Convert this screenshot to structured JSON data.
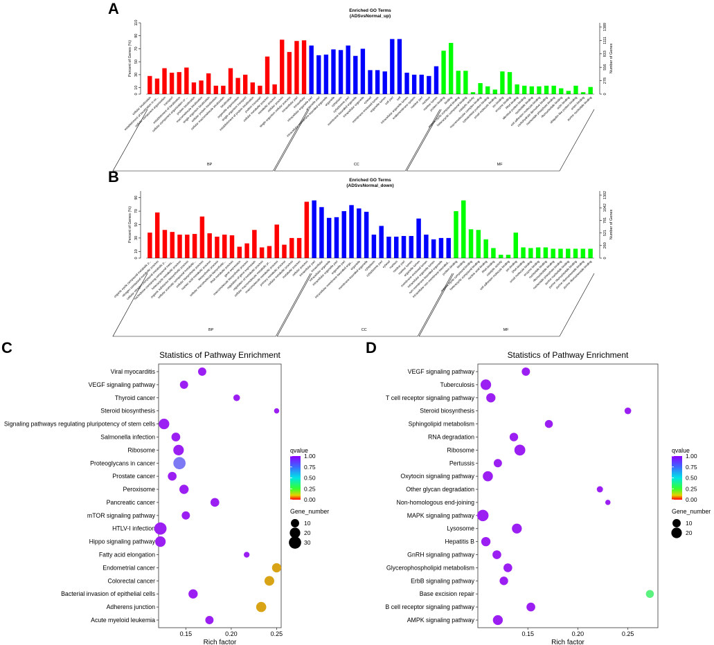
{
  "panels": {
    "a": "A",
    "b": "B",
    "c": "C",
    "d": "D"
  },
  "chart_data": [
    {
      "id": "A",
      "type": "bar",
      "title": "Enriched GO Terms",
      "subtitle": "(ADSvsNormal_up)",
      "ylabel_left": "Percent of Genes (%)",
      "ylabel_right": "Number of Genes",
      "left_ticks": [
        "0",
        "10",
        "30",
        "50",
        "70",
        "90",
        "110"
      ],
      "right_ticks": [
        "0",
        "278",
        "556",
        "833",
        "1111",
        "1389"
      ],
      "ylim": [
        0,
        110
      ],
      "groups": [
        {
          "name": "BP",
          "color": "#ff0000",
          "start": 0,
          "end": 21
        },
        {
          "name": "CC",
          "color": "#0000ff",
          "start": 22,
          "end": 39
        },
        {
          "name": "MF",
          "color": "#00ff00",
          "start": 40,
          "end": 63
        }
      ],
      "categories": [
        "cellular localization",
        "establishment of localization in ce...",
        "cellular component organization",
        "transport",
        "establishment of localization",
        "cellular component organization or ...",
        "protein localization",
        "macromolecule localization",
        "single-organism localization",
        "cellular protein localization",
        "cellular macromolecule localization",
        "localization",
        "organelle organization",
        "single-organism transport",
        "establishment of protein localization",
        "protein transport",
        "cellular metabolic process",
        "metabolic process",
        "cellular process",
        "single-organism cellular process",
        "intracellular part",
        "intracellular",
        "intracellular organelle part",
        "organelle part",
        "intracellular membrane-bounded organelle",
        "organelle",
        "cytoplasm",
        "cytoplasmic part",
        "membrane-bounded organelle",
        "intracellular organelle",
        "cytosol",
        "membrane-enclosed lumen",
        "organelle lumen",
        "cell part",
        "cell",
        "intracellular organelle lumen",
        "endomembrane system",
        "nuclear part",
        "nucleus",
        "nuclear lumen",
        "protein binding",
        "binding",
        "organic cyclic compound binding",
        "heterocyclic compound binding",
        "catalytic activity",
        "macromolecular complex binding",
        "cytoskeletal protein binding",
        "small molecule binding",
        "ion binding",
        "enzyme binding",
        "RNA binding",
        "identical protein binding",
        "nucleotide binding",
        "cell adhesion molecule binding",
        "carbohydrate derivative binding",
        "nucleoside phosphate binding",
        "ribonucleotide binding",
        "actin binding",
        "ubiquitin-like protein binding",
        "anion binding",
        "purine nucleotide binding",
        "ribonucleoside binding",
        "transferase activity",
        "hydrolase activity"
      ],
      "values": [
        28,
        24,
        40,
        33,
        34,
        41,
        18,
        21,
        32,
        13,
        13,
        40,
        25,
        30,
        18,
        13,
        58,
        15,
        84,
        65,
        82,
        83,
        75,
        60,
        61,
        69,
        68,
        75,
        59,
        70,
        37,
        37,
        35,
        85,
        85,
        33,
        30,
        30,
        28,
        43,
        67,
        79,
        36,
        36,
        3,
        17,
        12,
        7,
        35,
        34,
        15,
        13,
        12,
        12,
        13,
        13,
        9,
        5,
        13,
        3,
        11,
        0,
        0,
        0
      ],
      "shown": 61
    },
    {
      "id": "B",
      "type": "bar",
      "title": "Enriched GO Terms",
      "subtitle": "(ADSvsNormal_down)",
      "ylabel_left": "Percent of Genes (%)",
      "ylabel_right": "Number of Genes",
      "left_ticks": [
        "0",
        "10",
        "30",
        "50",
        "70",
        "90"
      ],
      "right_ticks": [
        "0",
        "260",
        "521",
        "781",
        "1042",
        "1302"
      ],
      "ylim": [
        0,
        100
      ],
      "groups": [
        {
          "name": "BP",
          "color": "#ff0000",
          "start": 0,
          "end": 21
        },
        {
          "name": "CC",
          "color": "#0000ff",
          "start": 22,
          "end": 40
        },
        {
          "name": "MF",
          "color": "#00ff00",
          "start": 41,
          "end": 59
        }
      ],
      "categories": [
        "organic cyclic compound metabolic p...",
        "nitrogen compound metabolic process",
        "cellular nitrogen compound metabolic p...",
        "nucleobase-containing compound meta...",
        "heterocycle metabolic process",
        "organic substance biosynthetic process",
        "cellular aromatic compound metabolic...",
        "cellular biosynthetic process",
        "nucleic acid metabolic process",
        "biosynthetic process",
        "cellular macromolecule biosynthetic...",
        "RNA metabolic process",
        "gene expression",
        "macromolecule biosynthetic process",
        "regulation of gene expression",
        "regulation of metabolic process",
        "cellular macromolecule metabolic pr...",
        "macromolecule metabolic process",
        "primary metabolic process",
        "cellular metabolic process",
        "metabolic process",
        "cellular process",
        "intracellular part",
        "intracellular",
        "intracellular organelle",
        "intracellular organelle part",
        "organelle part",
        "intracellular membrane-bounded orga...",
        "organelle",
        "membrane-bounded organelle",
        "cytoplasm",
        "cytoplasmic part",
        "cytosol",
        "nucleus",
        "nuclear part",
        "nuclear lumen",
        "organelle lumen",
        "membrane-enclosed lumen",
        "intracellular organelle lumen",
        "non-membrane-bounded organelle",
        "intracellular non-membrane-bounded...",
        "protein binding",
        "binding",
        "organic cyclic compound binding",
        "heterocyclic compound binding",
        "nucleic acid binding",
        "RNA binding",
        "catalytic activity",
        "cell adhesion molecule binding",
        "ion binding",
        "DNA binding",
        "small molecule binding",
        "enzyme binding",
        "nucleotide binding",
        "ribonucleotide binding",
        "nucleoside phosphate binding",
        "purine nucleotide binding",
        "purine ribonucleotide binding",
        "purine ribonucleoside binding",
        "purine ribonucleoside binding"
      ],
      "values": [
        38,
        68,
        42,
        39,
        35,
        35,
        36,
        62,
        37,
        32,
        35,
        34,
        17,
        22,
        42,
        16,
        18,
        50,
        20,
        30,
        30,
        84,
        86,
        76,
        60,
        61,
        70,
        79,
        74,
        69,
        35,
        48,
        32,
        32,
        33,
        33,
        59,
        35,
        28,
        30,
        30,
        70,
        86,
        43,
        42,
        28,
        15,
        5,
        5,
        38,
        16,
        15,
        16,
        16,
        14,
        14,
        14,
        14,
        14,
        14
      ],
      "shown": 60
    },
    {
      "id": "C",
      "type": "scatter",
      "title": "Statistics of Pathway Enrichment",
      "xlabel": "Rich factor",
      "xlim": [
        0.12,
        0.255
      ],
      "xticks": [
        "0.15",
        "0.20",
        "0.25"
      ],
      "legend_color_title": "qvalue",
      "legend_color_ticks": [
        "1.00",
        "0.75",
        "0.50",
        "0.25",
        "0.00"
      ],
      "legend_size_title": "Gene_number",
      "legend_size_labels": [
        "10",
        "20",
        "30"
      ],
      "points": [
        {
          "label": "Viral myocarditis",
          "x": 0.168,
          "genes": 10,
          "q": 1.0
        },
        {
          "label": "VEGF signaling pathway",
          "x": 0.148,
          "genes": 10,
          "q": 1.0
        },
        {
          "label": "Thyroid cancer",
          "x": 0.206,
          "genes": 5,
          "q": 1.0
        },
        {
          "label": "Steroid biosynthesis",
          "x": 0.25,
          "genes": 2,
          "q": 1.0
        },
        {
          "label": "Signaling pathways regulating pluripotency of stem cells",
          "x": 0.126,
          "genes": 20,
          "q": 1.0
        },
        {
          "label": "Salmonella infection",
          "x": 0.139,
          "genes": 12,
          "q": 1.0
        },
        {
          "label": "Ribosome",
          "x": 0.142,
          "genes": 20,
          "q": 1.0
        },
        {
          "label": "Proteoglycans in cancer",
          "x": 0.143,
          "genes": 30,
          "q": 0.82
        },
        {
          "label": "Prostate cancer",
          "x": 0.135,
          "genes": 12,
          "q": 1.0
        },
        {
          "label": "Peroxisome",
          "x": 0.148,
          "genes": 14,
          "q": 1.0
        },
        {
          "label": "Pancreatic cancer",
          "x": 0.182,
          "genes": 12,
          "q": 1.0
        },
        {
          "label": "mTOR signaling pathway",
          "x": 0.15,
          "genes": 10,
          "q": 1.0
        },
        {
          "label": "HTLV-I infection",
          "x": 0.122,
          "genes": 30,
          "q": 1.0
        },
        {
          "label": "Hippo signaling pathway",
          "x": 0.122,
          "genes": 20,
          "q": 1.0
        },
        {
          "label": "Fatty acid elongation",
          "x": 0.217,
          "genes": 3,
          "q": 1.0
        },
        {
          "label": "Endometrial cancer",
          "x": 0.25,
          "genes": 14,
          "q": 0.1
        },
        {
          "label": "Colorectal cancer",
          "x": 0.242,
          "genes": 16,
          "q": 0.1
        },
        {
          "label": "Bacterial invasion of epithelial cells",
          "x": 0.158,
          "genes": 14,
          "q": 1.0
        },
        {
          "label": "Adherens junction",
          "x": 0.233,
          "genes": 18,
          "q": 0.1
        },
        {
          "label": "Acute myeloid leukemia",
          "x": 0.176,
          "genes": 10,
          "q": 1.0
        }
      ]
    },
    {
      "id": "D",
      "type": "scatter",
      "title": "Statistics of Pathway Enrichment",
      "xlabel": "Rich factor",
      "xlim": [
        0.1,
        0.28
      ],
      "xticks": [
        "0.15",
        "0.20",
        "0.25"
      ],
      "legend_color_title": "qvalue",
      "legend_color_ticks": [
        "1.00",
        "0.75",
        "0.50",
        "0.25",
        "0.00"
      ],
      "legend_size_title": "Gene_number",
      "legend_size_labels": [
        "10",
        "20"
      ],
      "points": [
        {
          "label": "VEGF signaling pathway",
          "x": 0.148,
          "genes": 10,
          "q": 1.0
        },
        {
          "label": "Tuberculosis",
          "x": 0.108,
          "genes": 20,
          "q": 1.0
        },
        {
          "label": "T cell receptor signaling pathway",
          "x": 0.113,
          "genes": 14,
          "q": 1.0
        },
        {
          "label": "Steroid biosynthesis",
          "x": 0.25,
          "genes": 5,
          "q": 1.0
        },
        {
          "label": "Sphingolipid metabolism",
          "x": 0.171,
          "genes": 9,
          "q": 1.0
        },
        {
          "label": "RNA degradation",
          "x": 0.136,
          "genes": 11,
          "q": 1.0
        },
        {
          "label": "Ribosome",
          "x": 0.142,
          "genes": 22,
          "q": 1.0
        },
        {
          "label": "Pertussis",
          "x": 0.12,
          "genes": 10,
          "q": 1.0
        },
        {
          "label": "Oxytocin signaling pathway",
          "x": 0.11,
          "genes": 18,
          "q": 1.0
        },
        {
          "label": "Other glycan degradation",
          "x": 0.222,
          "genes": 4,
          "q": 1.0
        },
        {
          "label": "Non-homologous end-joining",
          "x": 0.23,
          "genes": 2,
          "q": 1.0
        },
        {
          "label": "MAPK signaling pathway",
          "x": 0.105,
          "genes": 25,
          "q": 1.0
        },
        {
          "label": "Lysosome",
          "x": 0.139,
          "genes": 17,
          "q": 1.0
        },
        {
          "label": "Hepatitis B",
          "x": 0.108,
          "genes": 14,
          "q": 1.0
        },
        {
          "label": "GnRH signaling pathway",
          "x": 0.119,
          "genes": 12,
          "q": 1.0
        },
        {
          "label": "Glycerophospholipid metabolism",
          "x": 0.13,
          "genes": 12,
          "q": 1.0
        },
        {
          "label": "ErbB signaling pathway",
          "x": 0.126,
          "genes": 11,
          "q": 1.0
        },
        {
          "label": "Base excision repair",
          "x": 0.272,
          "genes": 9,
          "q": 0.45
        },
        {
          "label": "B cell receptor signaling pathway",
          "x": 0.153,
          "genes": 12,
          "q": 1.0
        },
        {
          "label": "AMPK signaling pathway",
          "x": 0.12,
          "genes": 17,
          "q": 1.0
        }
      ]
    }
  ]
}
